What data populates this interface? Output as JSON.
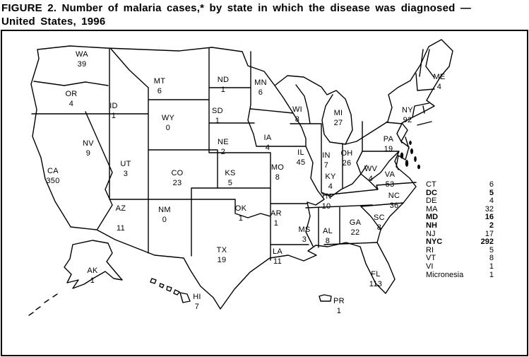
{
  "title": {
    "line1": "FIGURE 2. Number of malaria cases,* by state in which the disease was diagnosed —",
    "line2": "United States, 1996"
  },
  "map": {
    "states": [
      {
        "abbr": "WA",
        "value": "39"
      },
      {
        "abbr": "OR",
        "value": "4"
      },
      {
        "abbr": "ID",
        "value": "1"
      },
      {
        "abbr": "MT",
        "value": "6"
      },
      {
        "abbr": "WY",
        "value": "0"
      },
      {
        "abbr": "NV",
        "value": "9"
      },
      {
        "abbr": "UT",
        "value": "3"
      },
      {
        "abbr": "CA",
        "value": "350"
      },
      {
        "abbr": "CO",
        "value": "23"
      },
      {
        "abbr": "AZ",
        "value": "11"
      },
      {
        "abbr": "NM",
        "value": "0"
      },
      {
        "abbr": "ND",
        "value": "1"
      },
      {
        "abbr": "SD",
        "value": "1"
      },
      {
        "abbr": "NE",
        "value": "2"
      },
      {
        "abbr": "KS",
        "value": "5"
      },
      {
        "abbr": "OK",
        "value": "1"
      },
      {
        "abbr": "TX",
        "value": "19"
      },
      {
        "abbr": "MN",
        "value": "6"
      },
      {
        "abbr": "IA",
        "value": "4"
      },
      {
        "abbr": "MO",
        "value": "8"
      },
      {
        "abbr": "AR",
        "value": "1"
      },
      {
        "abbr": "LA",
        "value": "11"
      },
      {
        "abbr": "WI",
        "value": "8"
      },
      {
        "abbr": "IL",
        "value": "45"
      },
      {
        "abbr": "IN",
        "value": "7"
      },
      {
        "abbr": "MI",
        "value": "27"
      },
      {
        "abbr": "OH",
        "value": "26"
      },
      {
        "abbr": "KY",
        "value": "4"
      },
      {
        "abbr": "WV",
        "value": "4"
      },
      {
        "abbr": "VA",
        "value": "53"
      },
      {
        "abbr": "PA",
        "value": "19"
      },
      {
        "abbr": "NY",
        "value": "92"
      },
      {
        "abbr": "ME",
        "value": "4"
      },
      {
        "abbr": "TN",
        "value": "10"
      },
      {
        "abbr": "NC",
        "value": "36"
      },
      {
        "abbr": "SC",
        "value": "8"
      },
      {
        "abbr": "GA",
        "value": "22"
      },
      {
        "abbr": "AL",
        "value": "8"
      },
      {
        "abbr": "MS",
        "value": "3"
      },
      {
        "abbr": "FL",
        "value": "113"
      },
      {
        "abbr": "AK",
        "value": "1"
      },
      {
        "abbr": "HI",
        "value": "7"
      },
      {
        "abbr": "PR",
        "value": "1"
      }
    ]
  },
  "legend": {
    "entries": [
      {
        "label": "CT",
        "value": "6",
        "bold": false
      },
      {
        "label": "DC",
        "value": "5",
        "bold": true
      },
      {
        "label": "DE",
        "value": "4",
        "bold": false
      },
      {
        "label": "MA",
        "value": "32",
        "bold": false
      },
      {
        "label": "MD",
        "value": "16",
        "bold": true
      },
      {
        "label": "NH",
        "value": "2",
        "bold": true
      },
      {
        "label": "NJ",
        "value": "17",
        "bold": false
      },
      {
        "label": "NYC",
        "value": "292",
        "bold": true
      },
      {
        "label": "RI",
        "value": "5",
        "bold": false
      },
      {
        "label": "VT",
        "value": "8",
        "bold": false
      },
      {
        "label": "VI",
        "value": "1",
        "bold": false
      },
      {
        "label": "Micronesia",
        "value": "1",
        "bold": false
      }
    ]
  }
}
